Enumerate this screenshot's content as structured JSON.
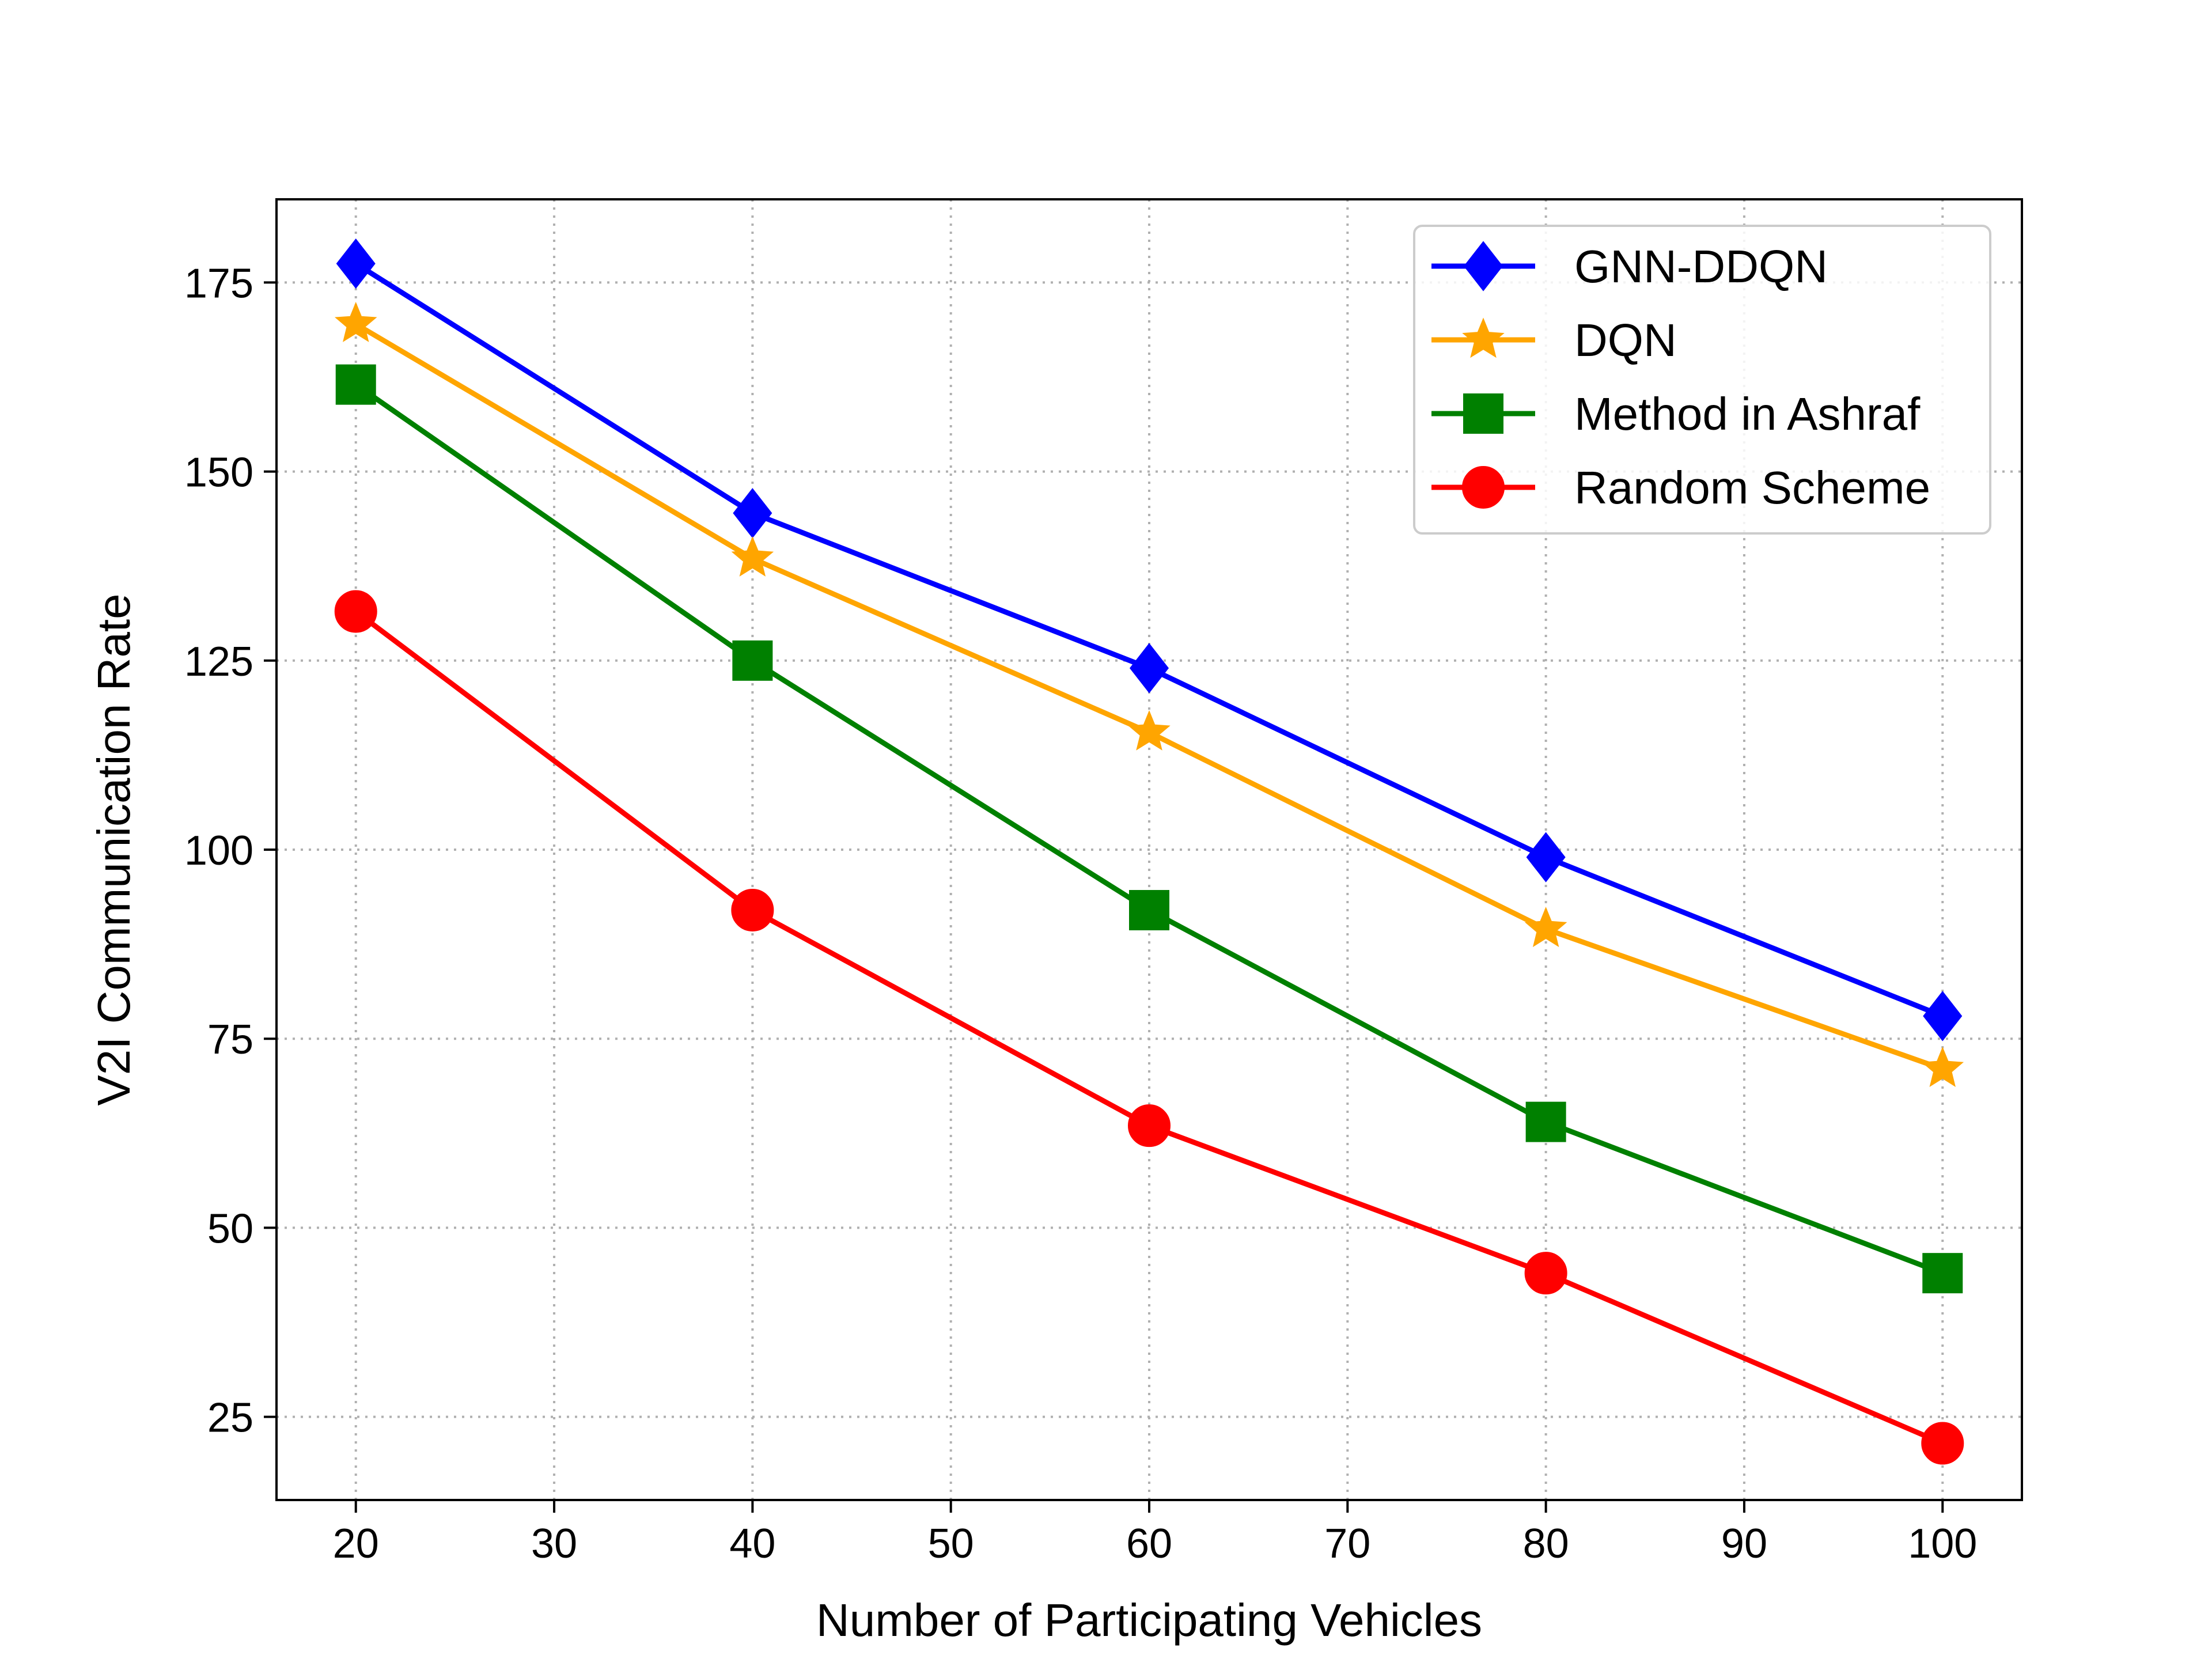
{
  "chart_data": {
    "type": "line",
    "title": "",
    "xlabel": "Number of Participating Vehicles",
    "ylabel": "V2I Communication Rate",
    "x": [
      20,
      40,
      60,
      80,
      100
    ],
    "xlim": [
      16,
      104
    ],
    "ylim": [
      14,
      186
    ],
    "xticks": [
      20,
      30,
      40,
      50,
      60,
      70,
      80,
      90,
      100
    ],
    "yticks": [
      25,
      50,
      75,
      100,
      125,
      150,
      175
    ],
    "grid": true,
    "legend_position": "top-right",
    "series": [
      {
        "name": "GNN-DDQN",
        "color": "#0000ff",
        "marker": "diamond",
        "values": [
          177.5,
          144.5,
          124,
          99,
          78
        ]
      },
      {
        "name": "DQN",
        "color": "#ffa500",
        "marker": "star",
        "values": [
          169.5,
          138.5,
          115.5,
          89.5,
          71
        ]
      },
      {
        "name": "Method in Ashraf",
        "color": "#008000",
        "marker": "square",
        "values": [
          161.5,
          125,
          92,
          64,
          44
        ]
      },
      {
        "name": "Random Scheme",
        "color": "#ff0000",
        "marker": "circle",
        "values": [
          131.5,
          92,
          63.5,
          44,
          21.5
        ]
      }
    ]
  }
}
